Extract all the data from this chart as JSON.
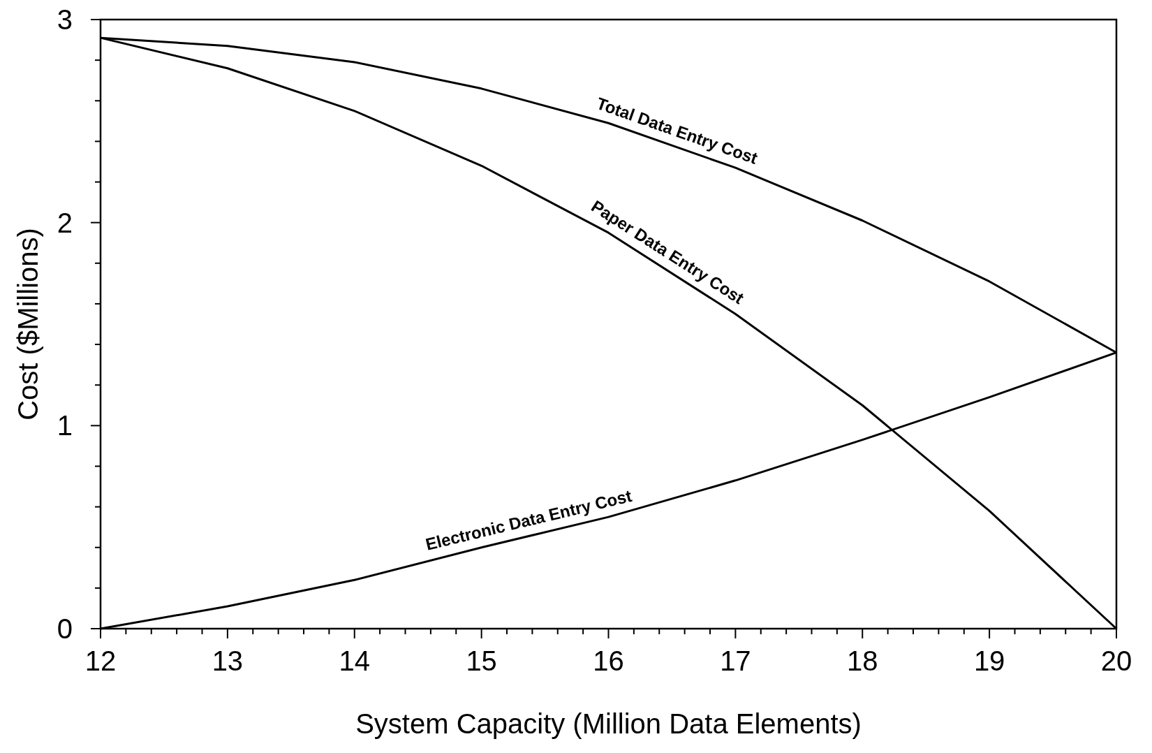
{
  "chart_data": {
    "type": "line",
    "xlabel": "System Capacity (Million Data Elements)",
    "ylabel": "Cost ($Millions)",
    "x": [
      12,
      13,
      14,
      15,
      16,
      17,
      18,
      19,
      20
    ],
    "series": [
      {
        "name": "Total Data Entry Cost",
        "color": "#000000",
        "values": [
          2.91,
          2.87,
          2.79,
          2.66,
          2.49,
          2.27,
          2.01,
          1.71,
          1.36
        ]
      },
      {
        "name": "Paper Data Entry Cost",
        "color": "#000000",
        "values": [
          2.91,
          2.76,
          2.55,
          2.28,
          1.95,
          1.55,
          1.1,
          0.58,
          0
        ]
      },
      {
        "name": "Electronic Data Entry Cost",
        "color": "#000000",
        "values": [
          0,
          0.11,
          0.24,
          0.4,
          0.55,
          0.73,
          0.93,
          1.14,
          1.36
        ]
      }
    ],
    "xlim": [
      12,
      20
    ],
    "xticks": [
      12,
      {
        "value": 12.2,
        "label": null
      },
      {
        "value": 12.4,
        "label": null
      },
      {
        "value": 12.6,
        "label": null
      },
      {
        "value": 12.8,
        "label": null
      },
      13,
      {
        "value": 13.2,
        "label": null
      },
      {
        "value": 13.4,
        "label": null
      },
      {
        "value": 13.6,
        "label": null
      },
      {
        "value": 13.8,
        "label": null
      },
      14,
      {
        "value": 14.2,
        "label": null
      },
      {
        "value": 14.4,
        "label": null
      },
      {
        "value": 14.6,
        "label": null
      },
      {
        "value": 14.8,
        "label": null
      },
      15,
      {
        "value": 15.2,
        "label": null
      },
      {
        "value": 15.4,
        "label": null
      },
      {
        "value": 15.6,
        "label": null
      },
      {
        "value": 15.8,
        "label": null
      },
      16,
      {
        "value": 16.2,
        "label": null
      },
      {
        "value": 16.4,
        "label": null
      },
      {
        "value": 16.6,
        "label": null
      },
      {
        "value": 16.8,
        "label": null
      },
      17,
      {
        "value": 17.2,
        "label": null
      },
      {
        "value": 17.4,
        "label": null
      },
      {
        "value": 17.6,
        "label": null
      },
      {
        "value": 17.8,
        "label": null
      },
      18,
      {
        "value": 18.2,
        "label": null
      },
      {
        "value": 18.4,
        "label": null
      },
      {
        "value": 18.6,
        "label": null
      },
      {
        "value": 18.8,
        "label": null
      },
      19,
      {
        "value": 19.2,
        "label": null
      },
      {
        "value": 19.4,
        "label": null
      },
      {
        "value": 19.6,
        "label": null
      },
      {
        "value": 19.8,
        "label": null
      },
      20
    ],
    "ylim": [
      0,
      3
    ],
    "yticks": [
      0,
      {
        "value": 0.2,
        "label": null
      },
      {
        "value": 0.4,
        "label": null
      },
      {
        "value": 0.6,
        "label": null
      },
      {
        "value": 0.8,
        "label": null
      },
      1,
      {
        "value": 1.2,
        "label": null
      },
      {
        "value": 1.4,
        "label": null
      },
      {
        "value": 1.6,
        "label": null
      },
      {
        "value": 1.8,
        "label": null
      },
      2,
      {
        "value": 2.2,
        "label": null
      },
      {
        "value": 2.4,
        "label": null
      },
      {
        "value": 2.6,
        "label": null
      },
      {
        "value": 2.8,
        "label": null
      },
      3
    ],
    "grid": false,
    "marker": "none",
    "line_style": "solid"
  }
}
